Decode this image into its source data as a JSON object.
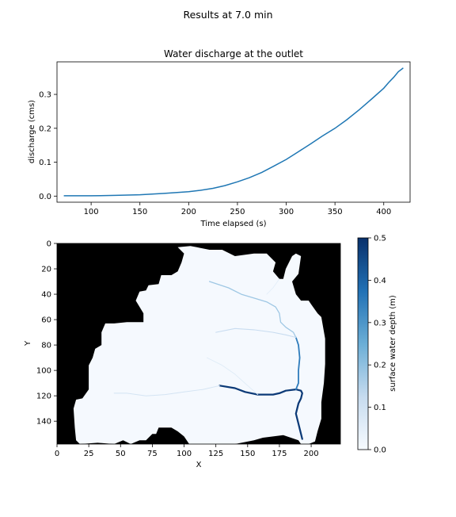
{
  "figure": {
    "suptitle": "Results at 7.0 min"
  },
  "chart_data": [
    {
      "type": "line",
      "title": "Water discharge at the outlet",
      "xlabel": "Time elapsed (s)",
      "ylabel": "discharge (cms)",
      "xlim": [
        65,
        427
      ],
      "ylim": [
        -0.018,
        0.396
      ],
      "xticks": [
        100,
        150,
        200,
        250,
        300,
        350,
        400
      ],
      "yticks": [
        0.0,
        0.1,
        0.2,
        0.3
      ],
      "grid": false,
      "series": [
        {
          "color": "#1f77b4",
          "x": [
            72,
            100,
            125,
            150,
            175,
            200,
            212,
            225,
            237,
            250,
            262,
            275,
            287,
            300,
            312,
            325,
            337,
            350,
            362,
            375,
            387,
            400,
            405,
            410,
            415,
            420
          ],
          "y": [
            0.001,
            0.001,
            0.002,
            0.004,
            0.008,
            0.013,
            0.017,
            0.023,
            0.031,
            0.042,
            0.054,
            0.07,
            0.088,
            0.108,
            0.13,
            0.154,
            0.177,
            0.2,
            0.225,
            0.255,
            0.285,
            0.318,
            0.335,
            0.35,
            0.367,
            0.378
          ]
        }
      ]
    },
    {
      "type": "heatmap",
      "xlabel": "X",
      "ylabel": "Y",
      "xlim": [
        0,
        223
      ],
      "ylim": [
        158,
        0
      ],
      "xticks": [
        0,
        25,
        50,
        75,
        100,
        125,
        150,
        175,
        200
      ],
      "yticks": [
        0,
        20,
        40,
        60,
        80,
        100,
        120,
        140
      ],
      "background_color": "#000000",
      "colormap": "Blues",
      "colorbar": {
        "label": "surface water depth (m)",
        "range": [
          0.0,
          0.5
        ],
        "ticks": [
          0.0,
          0.1,
          0.2,
          0.3,
          0.4,
          0.5
        ],
        "colors": [
          "#f7fbff",
          "#c6dbef",
          "#6baed6",
          "#2171b5",
          "#08306b"
        ]
      },
      "watershed": {
        "boundary": [
          [
            104,
            158
          ],
          [
            140,
            158
          ],
          [
            155,
            155
          ],
          [
            162,
            153
          ],
          [
            178,
            151
          ],
          [
            190,
            155
          ],
          [
            192,
            158
          ],
          [
            198,
            158
          ],
          [
            203,
            156
          ],
          [
            205,
            148
          ],
          [
            208,
            138
          ],
          [
            208,
            125
          ],
          [
            210,
            110
          ],
          [
            211,
            95
          ],
          [
            211,
            75
          ],
          [
            208,
            58
          ],
          [
            205,
            55
          ],
          [
            200,
            48
          ],
          [
            198,
            45
          ],
          [
            192,
            45
          ],
          [
            188,
            40
          ],
          [
            185,
            30
          ],
          [
            190,
            24
          ],
          [
            192,
            10
          ],
          [
            188,
            8
          ],
          [
            185,
            10
          ],
          [
            180,
            20
          ],
          [
            178,
            28
          ],
          [
            175,
            28
          ],
          [
            170,
            22
          ],
          [
            172,
            15
          ],
          [
            165,
            8
          ],
          [
            155,
            8
          ],
          [
            140,
            10
          ],
          [
            130,
            5
          ],
          [
            120,
            5
          ],
          [
            110,
            3
          ],
          [
            105,
            2
          ],
          [
            95,
            3
          ],
          [
            100,
            8
          ],
          [
            98,
            15
          ],
          [
            95,
            22
          ],
          [
            90,
            25
          ],
          [
            82,
            25
          ],
          [
            80,
            32
          ],
          [
            72,
            33
          ],
          [
            70,
            37
          ],
          [
            65,
            38
          ],
          [
            62,
            45
          ],
          [
            68,
            55
          ],
          [
            68,
            62
          ],
          [
            55,
            62
          ],
          [
            45,
            63
          ],
          [
            38,
            63
          ],
          [
            35,
            70
          ],
          [
            35,
            80
          ],
          [
            30,
            83
          ],
          [
            28,
            90
          ],
          [
            25,
            96
          ],
          [
            25,
            115
          ],
          [
            20,
            122
          ],
          [
            15,
            123
          ],
          [
            13,
            130
          ],
          [
            14,
            145
          ],
          [
            15,
            155
          ],
          [
            18,
            158
          ],
          [
            32,
            157
          ],
          [
            45,
            158
          ],
          [
            52,
            155
          ],
          [
            58,
            158
          ],
          [
            65,
            155
          ],
          [
            70,
            155
          ],
          [
            75,
            150
          ],
          [
            78,
            150
          ],
          [
            80,
            145
          ],
          [
            90,
            145
          ],
          [
            95,
            148
          ],
          [
            100,
            152
          ]
        ],
        "depth_max": 0.02
      },
      "channels": [
        {
          "depth": 0.48,
          "points": [
            [
              128,
              112
            ],
            [
              140,
              114
            ],
            [
              148,
              117
            ],
            [
              158,
              119
            ],
            [
              170,
              119
            ],
            [
              175,
              118
            ],
            [
              180,
              116
            ],
            [
              188,
              115
            ],
            [
              192,
              116
            ],
            [
              193,
              118
            ],
            [
              192,
              122
            ],
            [
              190,
              126
            ],
            [
              189,
              130
            ],
            [
              188,
              134
            ],
            [
              189,
              138
            ],
            [
              190,
              142
            ],
            [
              191,
              146
            ],
            [
              192,
              150
            ],
            [
              193,
              154
            ]
          ]
        },
        {
          "depth": 0.35,
          "points": [
            [
              188,
              115
            ],
            [
              190,
              110
            ],
            [
              190,
              100
            ],
            [
              191,
              90
            ],
            [
              190,
              80
            ],
            [
              188,
              74
            ]
          ]
        },
        {
          "depth": 0.18,
          "points": [
            [
              188,
              74
            ],
            [
              186,
              70
            ],
            [
              180,
              66
            ],
            [
              176,
              62
            ],
            [
              175,
              55
            ],
            [
              172,
              50
            ],
            [
              165,
              46
            ],
            [
              155,
              43
            ],
            [
              145,
              40
            ],
            [
              135,
              35
            ],
            [
              120,
              30
            ]
          ]
        },
        {
          "depth": 0.12,
          "points": [
            [
              188,
              74
            ],
            [
              180,
              72
            ],
            [
              170,
              70
            ],
            [
              155,
              68
            ],
            [
              140,
              67
            ],
            [
              125,
              70
            ]
          ]
        },
        {
          "depth": 0.09,
          "points": [
            [
              128,
              112
            ],
            [
              115,
              115
            ],
            [
              100,
              117
            ],
            [
              85,
              119
            ],
            [
              70,
              120
            ],
            [
              55,
              118
            ],
            [
              45,
              118
            ]
          ]
        },
        {
          "depth": 0.06,
          "points": [
            [
              158,
              119
            ],
            [
              150,
              112
            ],
            [
              140,
              103
            ],
            [
              130,
              96
            ],
            [
              118,
              90
            ]
          ]
        },
        {
          "depth": 0.05,
          "points": [
            [
              175,
              28
            ],
            [
              170,
              35
            ],
            [
              165,
              40
            ]
          ]
        }
      ]
    }
  ]
}
